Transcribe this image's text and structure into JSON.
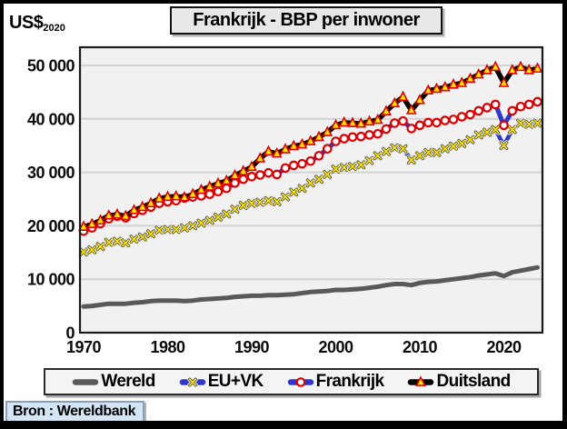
{
  "unit_label": {
    "text": "US$",
    "subscript": "2020"
  },
  "source": "Bron : Wereldbank",
  "chart_data": {
    "type": "line",
    "title": "Frankrijk - BBP per inwoner",
    "ylabel": "US$ 2020",
    "xlabel": "",
    "ylim": [
      0,
      50000
    ],
    "yticks": [
      0,
      10000,
      20000,
      30000,
      40000,
      50000
    ],
    "ytick_labels": [
      "0",
      "10 000",
      "20 000",
      "30 000",
      "40 000",
      "50 000"
    ],
    "xticks": [
      1970,
      1980,
      1990,
      2000,
      2010,
      2020
    ],
    "grid": "horizontal",
    "legend_position": "bottom",
    "plot_bg": "#f1f1f1",
    "grid_color": "#d2d2d2",
    "years": [
      1970,
      1971,
      1972,
      1973,
      1974,
      1975,
      1976,
      1977,
      1978,
      1979,
      1980,
      1981,
      1982,
      1983,
      1984,
      1985,
      1986,
      1987,
      1988,
      1989,
      1990,
      1991,
      1992,
      1993,
      1994,
      1995,
      1996,
      1997,
      1998,
      1999,
      2000,
      2001,
      2002,
      2003,
      2004,
      2005,
      2006,
      2007,
      2008,
      2009,
      2010,
      2011,
      2012,
      2013,
      2014,
      2015,
      2016,
      2017,
      2018,
      2019,
      2020,
      2021,
      2022,
      2023,
      2024
    ],
    "series": [
      {
        "name": "Wereld",
        "color": "#595959",
        "marker": "none",
        "line_width": 5,
        "values": [
          4900,
          5000,
          5200,
          5400,
          5400,
          5400,
          5600,
          5700,
          5900,
          6000,
          6000,
          6000,
          5900,
          6000,
          6200,
          6300,
          6400,
          6500,
          6700,
          6800,
          6900,
          6900,
          7000,
          7000,
          7100,
          7200,
          7400,
          7600,
          7700,
          7800,
          8000,
          8000,
          8100,
          8200,
          8400,
          8600,
          8900,
          9100,
          9100,
          8900,
          9300,
          9500,
          9600,
          9800,
          10000,
          10200,
          10400,
          10700,
          10900,
          11100,
          10600,
          11300,
          11600,
          11900,
          12200
        ]
      },
      {
        "name": "EU+VK",
        "color": "#3038c8",
        "marker": "x",
        "marker_color": "#ffe600",
        "line_width": 4.5,
        "values": [
          15100,
          15500,
          16100,
          16900,
          17100,
          16800,
          17500,
          17900,
          18500,
          19200,
          19300,
          19300,
          19600,
          20000,
          20500,
          21000,
          21600,
          22200,
          23100,
          23800,
          24200,
          24400,
          24700,
          24500,
          25400,
          26300,
          27000,
          28000,
          28700,
          29600,
          30600,
          30900,
          31100,
          31400,
          32200,
          33100,
          33900,
          34600,
          34400,
          32300,
          33100,
          33700,
          33700,
          34400,
          34900,
          35400,
          36100,
          37000,
          37500,
          38000,
          35000,
          38000,
          39200,
          39000,
          39200
        ]
      },
      {
        "name": "Frankrijk",
        "color": "#3038c8",
        "marker": "circle",
        "marker_fill": "#ffffff",
        "marker_stroke": "#dd0000",
        "line_width": 5,
        "values": [
          19000,
          19600,
          20400,
          21300,
          21800,
          21500,
          22300,
          22900,
          23500,
          24200,
          24500,
          24700,
          25200,
          25400,
          25600,
          25900,
          26400,
          27000,
          28000,
          28700,
          29200,
          29500,
          29900,
          29600,
          30800,
          31300,
          31600,
          32100,
          33100,
          34400,
          35800,
          36300,
          36600,
          36700,
          37000,
          37200,
          38100,
          39200,
          39600,
          38200,
          38800,
          39300,
          39300,
          39700,
          39900,
          40400,
          40800,
          41500,
          42100,
          42700,
          38800,
          41500,
          42300,
          42700,
          43200
        ]
      },
      {
        "name": "Duitsland",
        "color": "#000000",
        "marker": "triangle",
        "marker_fill": "#ffe600",
        "marker_stroke": "#dd0000",
        "line_width": 5.5,
        "values": [
          19800,
          20300,
          21000,
          21900,
          22100,
          21800,
          22900,
          23500,
          24200,
          25100,
          25400,
          25500,
          25300,
          25900,
          26700,
          27300,
          27900,
          28400,
          29400,
          30200,
          31000,
          32600,
          33900,
          33500,
          34300,
          34900,
          35200,
          35800,
          36600,
          37500,
          38800,
          39300,
          39200,
          39100,
          39500,
          39800,
          41400,
          42900,
          44100,
          41600,
          43500,
          45300,
          45600,
          45900,
          46400,
          46700,
          47500,
          48300,
          49100,
          49700,
          46700,
          49100,
          49700,
          49100,
          49400
        ]
      }
    ]
  }
}
